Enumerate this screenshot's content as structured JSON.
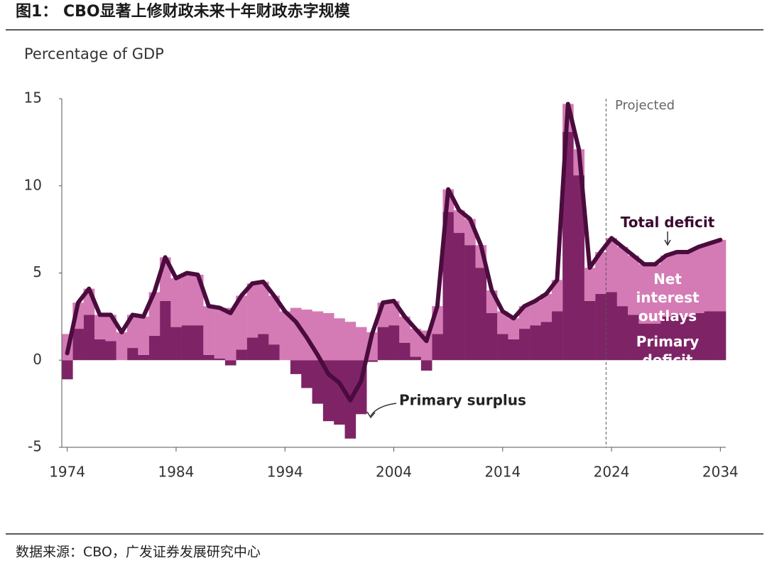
{
  "title": "图1： CBO显著上修财政未来十年财政赤字规模",
  "source": "数据来源：CBO，广发证券发展研究中心",
  "chart_data": {
    "type": "bar",
    "y_label": "Percentage of GDP",
    "annotations": {
      "projected": "Projected",
      "surplus": "Primary surplus"
    },
    "projected_from": 2024,
    "x": [
      1974,
      1975,
      1976,
      1977,
      1978,
      1979,
      1980,
      1981,
      1982,
      1983,
      1984,
      1985,
      1986,
      1987,
      1988,
      1989,
      1990,
      1991,
      1992,
      1993,
      1994,
      1995,
      1996,
      1997,
      1998,
      1999,
      2000,
      2001,
      2002,
      2003,
      2004,
      2005,
      2006,
      2007,
      2008,
      2009,
      2010,
      2011,
      2012,
      2013,
      2014,
      2015,
      2016,
      2017,
      2018,
      2019,
      2020,
      2021,
      2022,
      2023,
      2024,
      2025,
      2026,
      2027,
      2028,
      2029,
      2030,
      2031,
      2032,
      2033,
      2034
    ],
    "series": [
      {
        "name": "Primary deficit",
        "type": "bar",
        "color": "#7e2466",
        "values": [
          -1.1,
          1.8,
          2.6,
          1.2,
          1.1,
          0.0,
          0.7,
          0.3,
          1.4,
          3.4,
          1.9,
          2.0,
          2.0,
          0.3,
          0.1,
          -0.3,
          0.6,
          1.3,
          1.5,
          0.9,
          0.0,
          -0.8,
          -1.6,
          -2.5,
          -3.5,
          -3.7,
          -4.5,
          -3.1,
          -0.1,
          1.9,
          2.0,
          1.0,
          0.2,
          -0.6,
          1.5,
          8.5,
          7.3,
          6.6,
          5.3,
          2.7,
          1.5,
          1.2,
          1.8,
          2.0,
          2.2,
          2.8,
          13.1,
          10.6,
          3.4,
          3.8,
          3.9,
          3.1,
          2.6,
          2.1,
          2.1,
          2.5,
          2.6,
          2.5,
          2.7,
          2.8,
          2.8
        ]
      },
      {
        "name": "Net interest outlays",
        "type": "bar",
        "color": "#d47bb5",
        "values": [
          1.5,
          1.5,
          1.5,
          1.4,
          1.5,
          1.6,
          1.9,
          2.2,
          2.5,
          2.5,
          2.8,
          3.0,
          2.9,
          2.8,
          2.9,
          3.0,
          3.1,
          3.1,
          3.0,
          2.8,
          2.8,
          3.0,
          2.9,
          2.8,
          2.7,
          2.4,
          2.2,
          1.9,
          1.6,
          1.4,
          1.4,
          1.5,
          1.6,
          1.7,
          1.6,
          1.3,
          1.3,
          1.5,
          1.3,
          1.3,
          1.3,
          1.2,
          1.3,
          1.4,
          1.6,
          1.8,
          1.6,
          1.5,
          1.9,
          2.4,
          3.1,
          3.4,
          3.4,
          3.4,
          3.4,
          3.5,
          3.6,
          3.7,
          3.8,
          3.9,
          4.1
        ]
      },
      {
        "name": "Total deficit",
        "type": "line",
        "color": "#4a0c3d",
        "values": [
          0.4,
          3.3,
          4.1,
          2.6,
          2.6,
          1.6,
          2.6,
          2.5,
          3.9,
          5.9,
          4.7,
          5.0,
          4.9,
          3.1,
          3.0,
          2.7,
          3.7,
          4.4,
          4.5,
          3.7,
          2.8,
          2.2,
          1.3,
          0.3,
          -0.8,
          -1.3,
          -2.3,
          -1.2,
          1.5,
          3.3,
          3.4,
          2.5,
          1.8,
          1.1,
          3.1,
          9.8,
          8.6,
          8.1,
          6.6,
          4.0,
          2.8,
          2.4,
          3.1,
          3.4,
          3.8,
          4.6,
          14.7,
          12.1,
          5.3,
          6.2,
          7.0,
          6.5,
          6.0,
          5.5,
          5.5,
          6.0,
          6.2,
          6.2,
          6.5,
          6.7,
          6.9
        ]
      }
    ],
    "xlim": [
      1973.5,
      2034.5
    ],
    "xticks": [
      1974,
      1984,
      1994,
      2004,
      2014,
      2024,
      2034
    ],
    "ylim": [
      -5,
      15
    ],
    "yticks": [
      -5,
      0,
      5,
      10,
      15
    ]
  }
}
